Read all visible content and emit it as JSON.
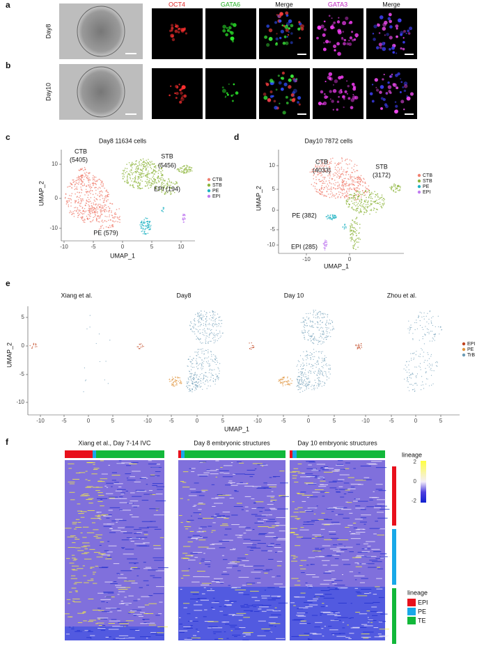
{
  "panel_labels": [
    "a",
    "b",
    "c",
    "d",
    "e",
    "f"
  ],
  "a": {
    "row_label": "Day8"
  },
  "b": {
    "row_label": "Day10"
  },
  "stains": [
    "OCT4",
    "GATA6",
    "Merge",
    "GATA3",
    "Merge"
  ],
  "c": {
    "title": "Day8  11634 cells",
    "x_label": "UMAP_1",
    "y_label": "UMAP_2",
    "xticks": [
      -10,
      -5,
      0,
      5,
      10
    ],
    "yticks": [
      10,
      0,
      -10
    ],
    "annotations": [
      "CTB",
      "(5405)",
      "STB",
      "(5456)",
      "EPI (194)",
      "PE (579)"
    ],
    "legend": [
      "CTB",
      "STB",
      "PE",
      "EPI"
    ]
  },
  "d": {
    "title": "Day10  7872 cells",
    "x_label": "UMAP_1",
    "y_label": "UMAP_2",
    "xticks": [
      -10,
      0
    ],
    "yticks": [
      10,
      5,
      0,
      -5,
      -10
    ],
    "annotations": [
      "CTB",
      "(4033)",
      "STB",
      "(3172)",
      "PE  (382)",
      "EPI (285)"
    ],
    "legend": [
      "CTB",
      "STB",
      "PE",
      "EPI"
    ]
  },
  "e": {
    "titles": [
      "Xiang et al.",
      "Day8",
      "Day 10",
      "Zhou et al."
    ],
    "x_label": "UMAP_1",
    "y_label": "UMAP_2",
    "xticks": [
      -10,
      -5,
      0,
      5
    ],
    "yticks": [
      5,
      0,
      -5,
      -10
    ],
    "legend": [
      "EPI",
      "PE",
      "TrB"
    ]
  },
  "f": {
    "titles": [
      "Xiang et al., Day 7-14 IVC",
      "Day 8 embryonic structures",
      "Day 10 embryonic structures"
    ],
    "legend_title": "lineage",
    "colorbar_ticks": [
      2,
      0,
      -2
    ],
    "lineage": [
      "EPI",
      "PE",
      "TE"
    ]
  }
}
